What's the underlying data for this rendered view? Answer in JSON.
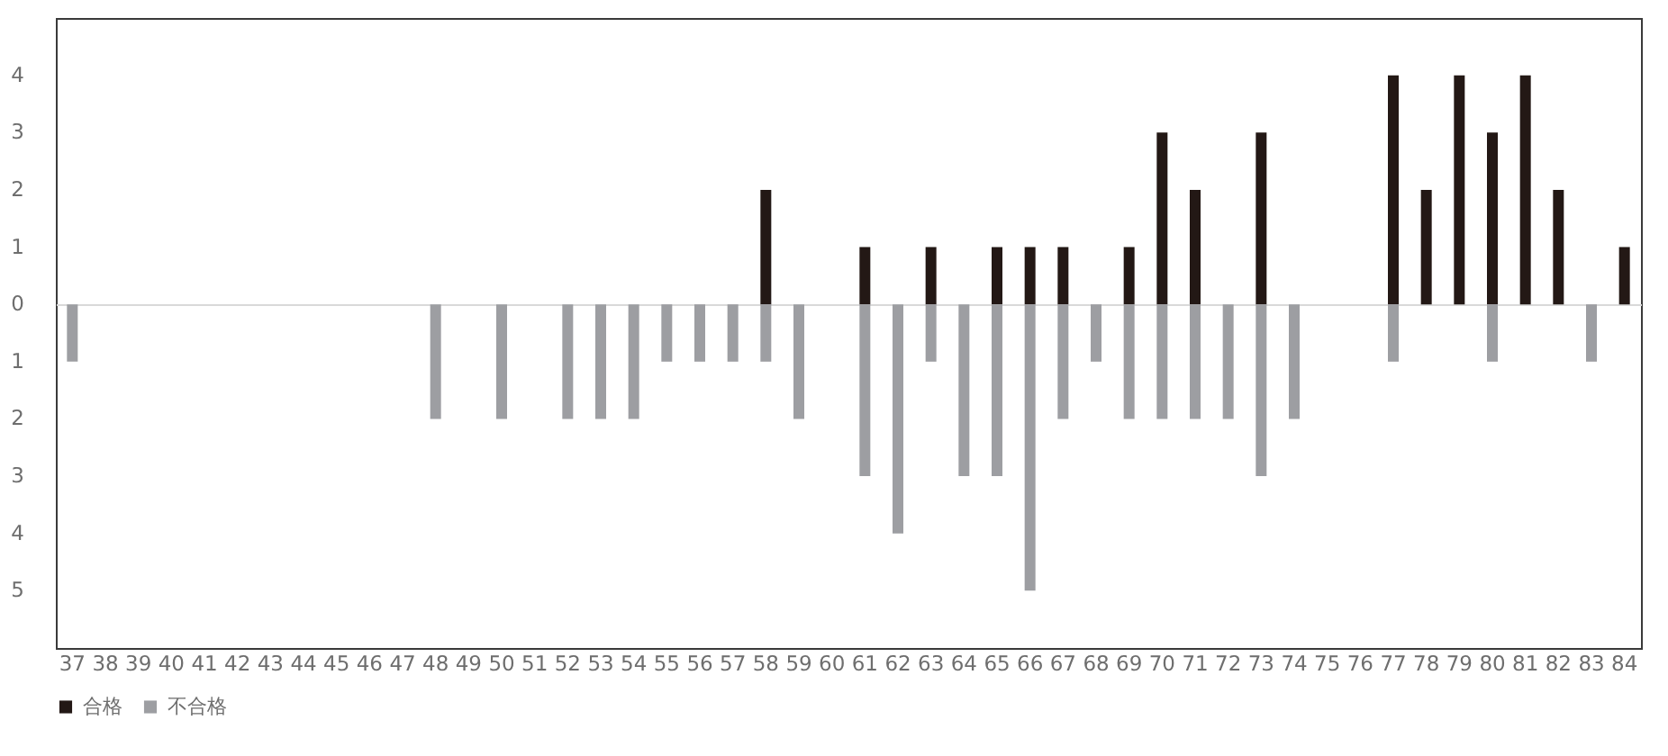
{
  "chart_data": {
    "type": "bar",
    "categories": [
      "37",
      "38",
      "39",
      "40",
      "41",
      "42",
      "43",
      "44",
      "45",
      "46",
      "47",
      "48",
      "49",
      "50",
      "51",
      "52",
      "53",
      "54",
      "55",
      "56",
      "57",
      "58",
      "59",
      "60",
      "61",
      "62",
      "63",
      "64",
      "65",
      "66",
      "67",
      "68",
      "69",
      "70",
      "71",
      "72",
      "73",
      "74",
      "75",
      "76",
      "77",
      "78",
      "79",
      "80",
      "81",
      "82",
      "83",
      "84"
    ],
    "series": [
      {
        "name": "合格",
        "color": "#231815",
        "values": [
          null,
          null,
          null,
          null,
          null,
          null,
          null,
          null,
          null,
          null,
          null,
          null,
          null,
          null,
          null,
          null,
          null,
          null,
          null,
          null,
          null,
          2,
          null,
          null,
          1,
          null,
          1,
          null,
          1,
          1,
          1,
          null,
          1,
          3,
          2,
          null,
          3,
          null,
          null,
          null,
          4,
          2,
          4,
          3,
          4,
          2,
          null,
          1
        ]
      },
      {
        "name": "不合格",
        "color": "#9d9ea2",
        "values": [
          -1,
          null,
          null,
          null,
          null,
          null,
          null,
          null,
          null,
          null,
          null,
          -2,
          null,
          -2,
          null,
          -2,
          -2,
          -2,
          -1,
          -1,
          -1,
          -1,
          -2,
          null,
          -3,
          -4,
          -1,
          -3,
          -3,
          -5,
          -2,
          -1,
          -2,
          -2,
          -2,
          -2,
          -3,
          -2,
          null,
          null,
          -1,
          null,
          null,
          -1,
          null,
          null,
          -1,
          null
        ]
      }
    ],
    "ylim": [
      -6,
      5
    ],
    "yticks": [
      {
        "value": -5,
        "label": "5"
      },
      {
        "value": -4,
        "label": "4"
      },
      {
        "value": -3,
        "label": "3"
      },
      {
        "value": -2,
        "label": "2"
      },
      {
        "value": -1,
        "label": "1"
      },
      0,
      1,
      2,
      3,
      4
    ],
    "legend": "bottom"
  }
}
